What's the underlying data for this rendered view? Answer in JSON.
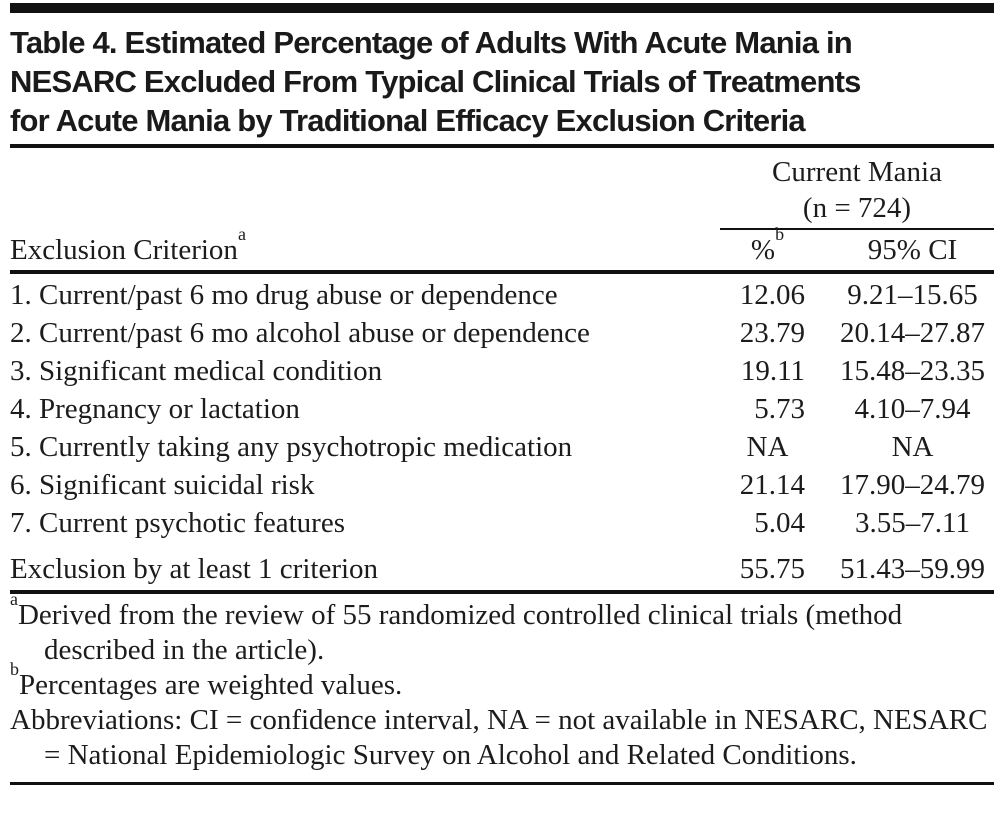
{
  "colors": {
    "background": "#ffffff",
    "text": "#1c1c1c",
    "rule": "#111111"
  },
  "table": {
    "title_lines": [
      "Table 4. Estimated Percentage of Adults With Acute Mania in",
      "NESARC Excluded From Typical Clinical Trials of Treatments",
      "for Acute Mania by Traditional Efficacy Exclusion Criteria"
    ],
    "spanner": {
      "line1": "Current Mania",
      "line2": "(n = 724)"
    },
    "columns": {
      "criterion": {
        "label": "Exclusion Criterion",
        "sup": "a"
      },
      "pct": {
        "label": "%",
        "sup": "b"
      },
      "ci": {
        "label": "95% CI",
        "sup": ""
      }
    },
    "rows": [
      {
        "criterion": "1. Current/past 6 mo drug abuse or dependence",
        "pct": "12.06",
        "ci": "9.21–15.65"
      },
      {
        "criterion": "2. Current/past 6 mo alcohol abuse or dependence",
        "pct": "23.79",
        "ci": "20.14–27.87"
      },
      {
        "criterion": "3. Significant medical condition",
        "pct": "19.11",
        "ci": "15.48–23.35"
      },
      {
        "criterion": "4. Pregnancy or lactation",
        "pct": "5.73",
        "ci": "4.10–7.94"
      },
      {
        "criterion": "5. Currently taking any psychotropic medication",
        "pct": "NA",
        "ci": "NA"
      },
      {
        "criterion": "6. Significant suicidal risk",
        "pct": "21.14",
        "ci": "17.90–24.79"
      },
      {
        "criterion": "7. Current psychotic features",
        "pct": "5.04",
        "ci": "3.55–7.11"
      }
    ],
    "summary_row": {
      "criterion": "Exclusion by at least 1 criterion",
      "pct": "55.75",
      "ci": "51.43–59.99"
    }
  },
  "footnotes": [
    {
      "marker": "a",
      "text": "Derived from the review of 55 randomized controlled clinical trials (method described in the article)."
    },
    {
      "marker": "b",
      "text": "Percentages are weighted values."
    },
    {
      "marker": "",
      "text": "Abbreviations: CI = confidence interval, NA = not available in NESARC, NESARC = National Epidemiologic Survey on Alcohol and Related Conditions."
    }
  ]
}
